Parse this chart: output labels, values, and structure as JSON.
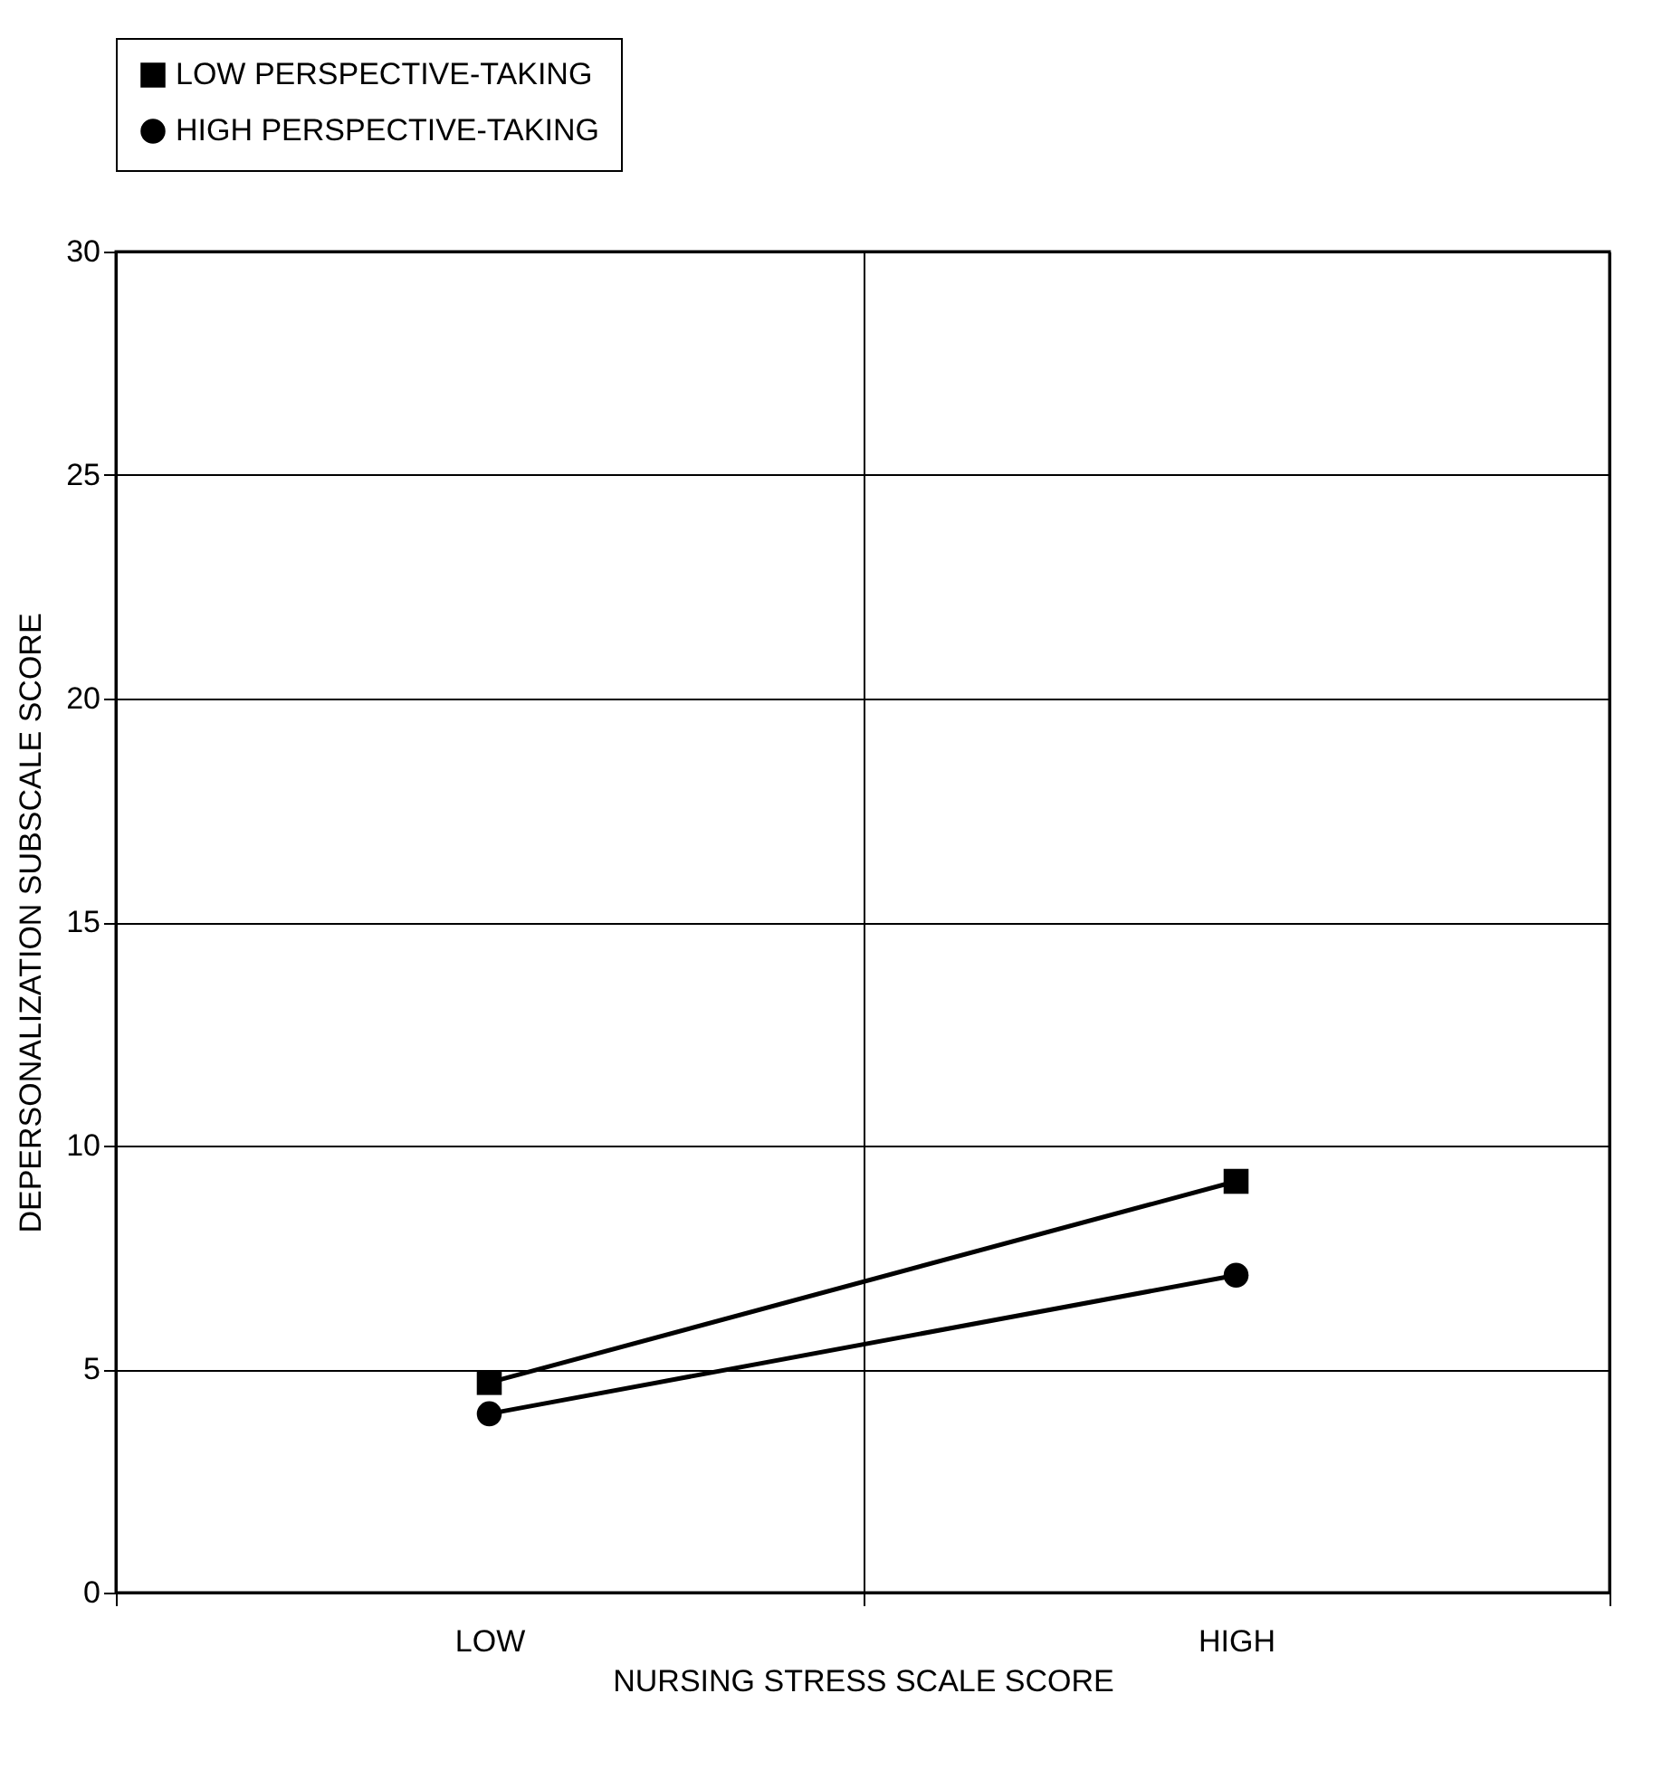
{
  "chart_data": {
    "type": "line",
    "xlabel": "NURSING STRESS SCALE SCORE",
    "ylabel": "DEPERSONALIZATION SUBSCALE SCORE",
    "categories": [
      "LOW",
      "HIGH"
    ],
    "series": [
      {
        "name": "LOW PERSPECTIVE-TAKING",
        "color": "#000000",
        "marker": "square",
        "values": [
          4.7,
          9.2
        ]
      },
      {
        "name": "HIGH PERSPECTIVE-TAKING",
        "color": "#000000",
        "marker": "circle",
        "values": [
          4.0,
          7.1
        ]
      }
    ],
    "ylim": [
      0,
      30
    ],
    "yticks": [
      0,
      5,
      10,
      15,
      20,
      25,
      30
    ],
    "grid": true,
    "legend": "top",
    "line_style": "solid"
  }
}
